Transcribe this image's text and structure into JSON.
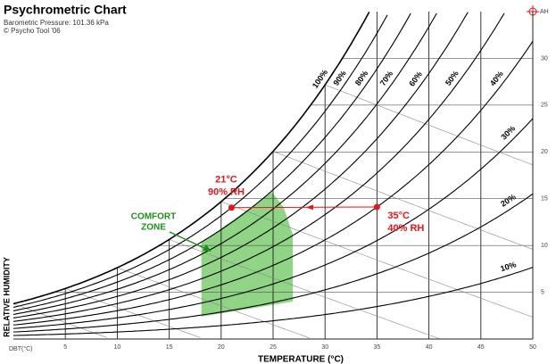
{
  "chart_data": {
    "type": "psychrometric",
    "title": "Psychrometric Chart",
    "subtitle": "Barometric Pressure: 101.36 kPa",
    "credit": "© Psycho Tool '06",
    "pressure_kpa": 101.36,
    "x_label": "TEMPERATURE (°C)",
    "x_origin_label": "DBT(°C)",
    "y_label": "RELATIVE HUMIDITY",
    "y2_label": "AH",
    "xlim": [
      0,
      50
    ],
    "xticks": [
      5,
      10,
      15,
      20,
      25,
      30,
      35,
      40,
      45,
      50
    ],
    "ylim": [
      0,
      35
    ],
    "yticks": [
      5,
      10,
      15,
      20,
      25,
      30
    ],
    "rh_lines": [
      10,
      20,
      30,
      40,
      50,
      60,
      70,
      80,
      90,
      100
    ],
    "rh_labels": [
      "10%",
      "20%",
      "30%",
      "40%",
      "50%",
      "60%",
      "70%",
      "80%",
      "90%",
      "100%"
    ],
    "wetbulb_lines": [
      0,
      5,
      10,
      15,
      20,
      25,
      30
    ],
    "comfort_zone": {
      "label": [
        "COMFORT",
        "ZONE"
      ],
      "color": "#7ccc70",
      "t": [
        18.1,
        18.1,
        24.9,
        26.0,
        26.9,
        26.9
      ],
      "w": [
        2.4,
        10.3,
        15.7,
        14.1,
        11.2,
        4.0
      ]
    },
    "points": [
      {
        "label": [
          "21°C",
          "90% RH"
        ],
        "t": 21,
        "rh": 90
      },
      {
        "label": [
          "35°C",
          "40% RH"
        ],
        "t": 35,
        "rh": 40
      }
    ],
    "point_color": "#e8141b"
  }
}
